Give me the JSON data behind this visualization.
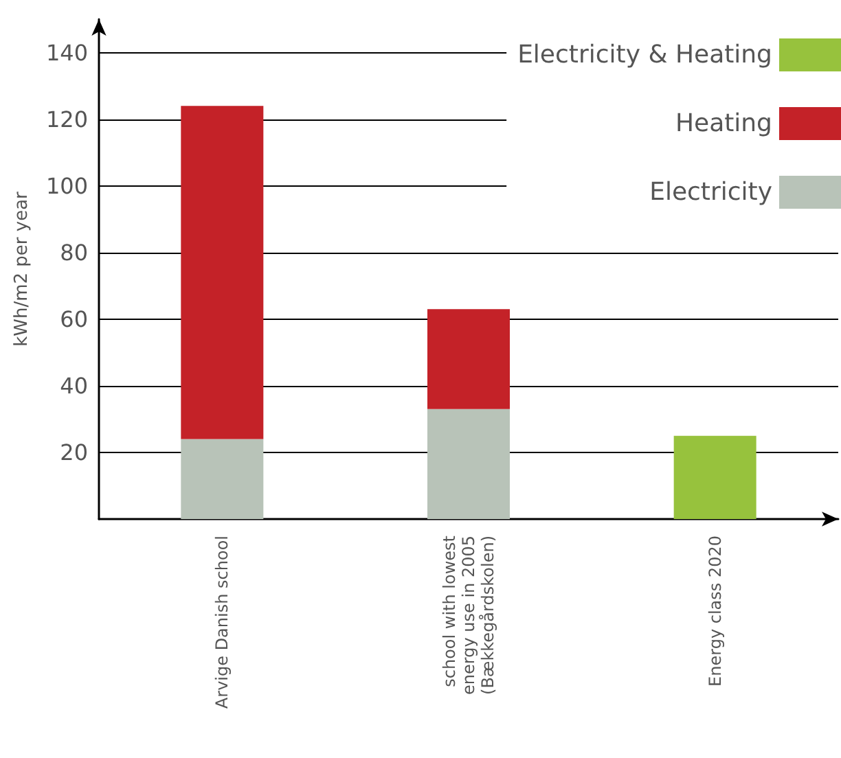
{
  "chart_data": {
    "type": "bar",
    "stacked": true,
    "ylabel": "kWh/m2 per year",
    "categories": [
      "Arvige Danish school",
      "school with lowest\nenergy use in 2005\n(Bækkegårdskolen)",
      "Energy class 2020"
    ],
    "series": [
      {
        "name": "Electricity",
        "color": "#b8c3b8",
        "values": [
          24,
          33,
          null
        ]
      },
      {
        "name": "Heating",
        "color": "#c42228",
        "values": [
          100,
          30,
          null
        ]
      },
      {
        "name": "Electricity & Heating",
        "color": "#97c23d",
        "values": [
          null,
          null,
          25
        ]
      }
    ],
    "ylim": [
      0,
      150
    ],
    "yticks": [
      20,
      40,
      60,
      80,
      100,
      120,
      140
    ],
    "grid": "y",
    "legend": "top right"
  }
}
